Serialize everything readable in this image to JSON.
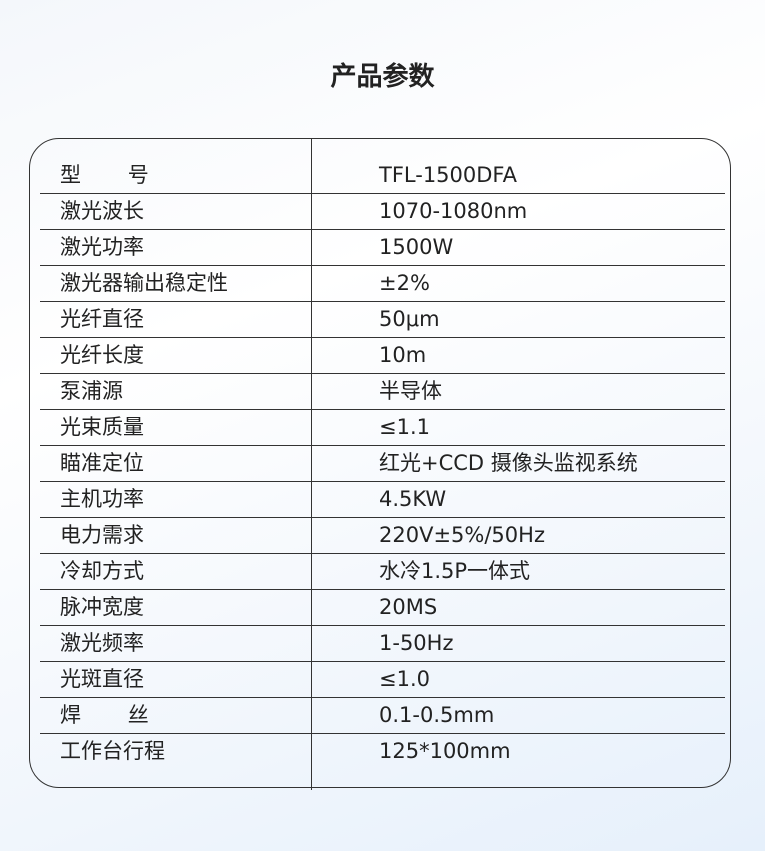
{
  "title": "产品参数",
  "rows": [
    {
      "label": "型       号",
      "value": "TFL-1500DFA"
    },
    {
      "label": "激光波长",
      "value": "1070-1080nm"
    },
    {
      "label": "激光功率",
      "value": "1500W"
    },
    {
      "label": "激光器输出稳定性",
      "value": "±2%"
    },
    {
      "label": "光纤直径",
      "value": "50μm"
    },
    {
      "label": "光纤长度",
      "value": "10m"
    },
    {
      "label": "泵浦源",
      "value": "半导体"
    },
    {
      "label": "光束质量",
      "value": "≤1.1"
    },
    {
      "label": "瞄准定位",
      "value": "红光+CCD 摄像头监视系统"
    },
    {
      "label": "主机功率",
      "value": "4.5KW"
    },
    {
      "label": "电力需求",
      "value": "220V±5%/50Hz"
    },
    {
      "label": "冷却方式",
      "value": "水冷1.5P一体式"
    },
    {
      "label": "脉冲宽度",
      "value": "20MS"
    },
    {
      "label": "激光频率",
      "value": "1-50Hz"
    },
    {
      "label": "光斑直径",
      "value": "≤1.0"
    },
    {
      "label": "焊       丝",
      "value": "0.1-0.5mm"
    },
    {
      "label": "工作台行程",
      "value": "125*100mm"
    }
  ]
}
